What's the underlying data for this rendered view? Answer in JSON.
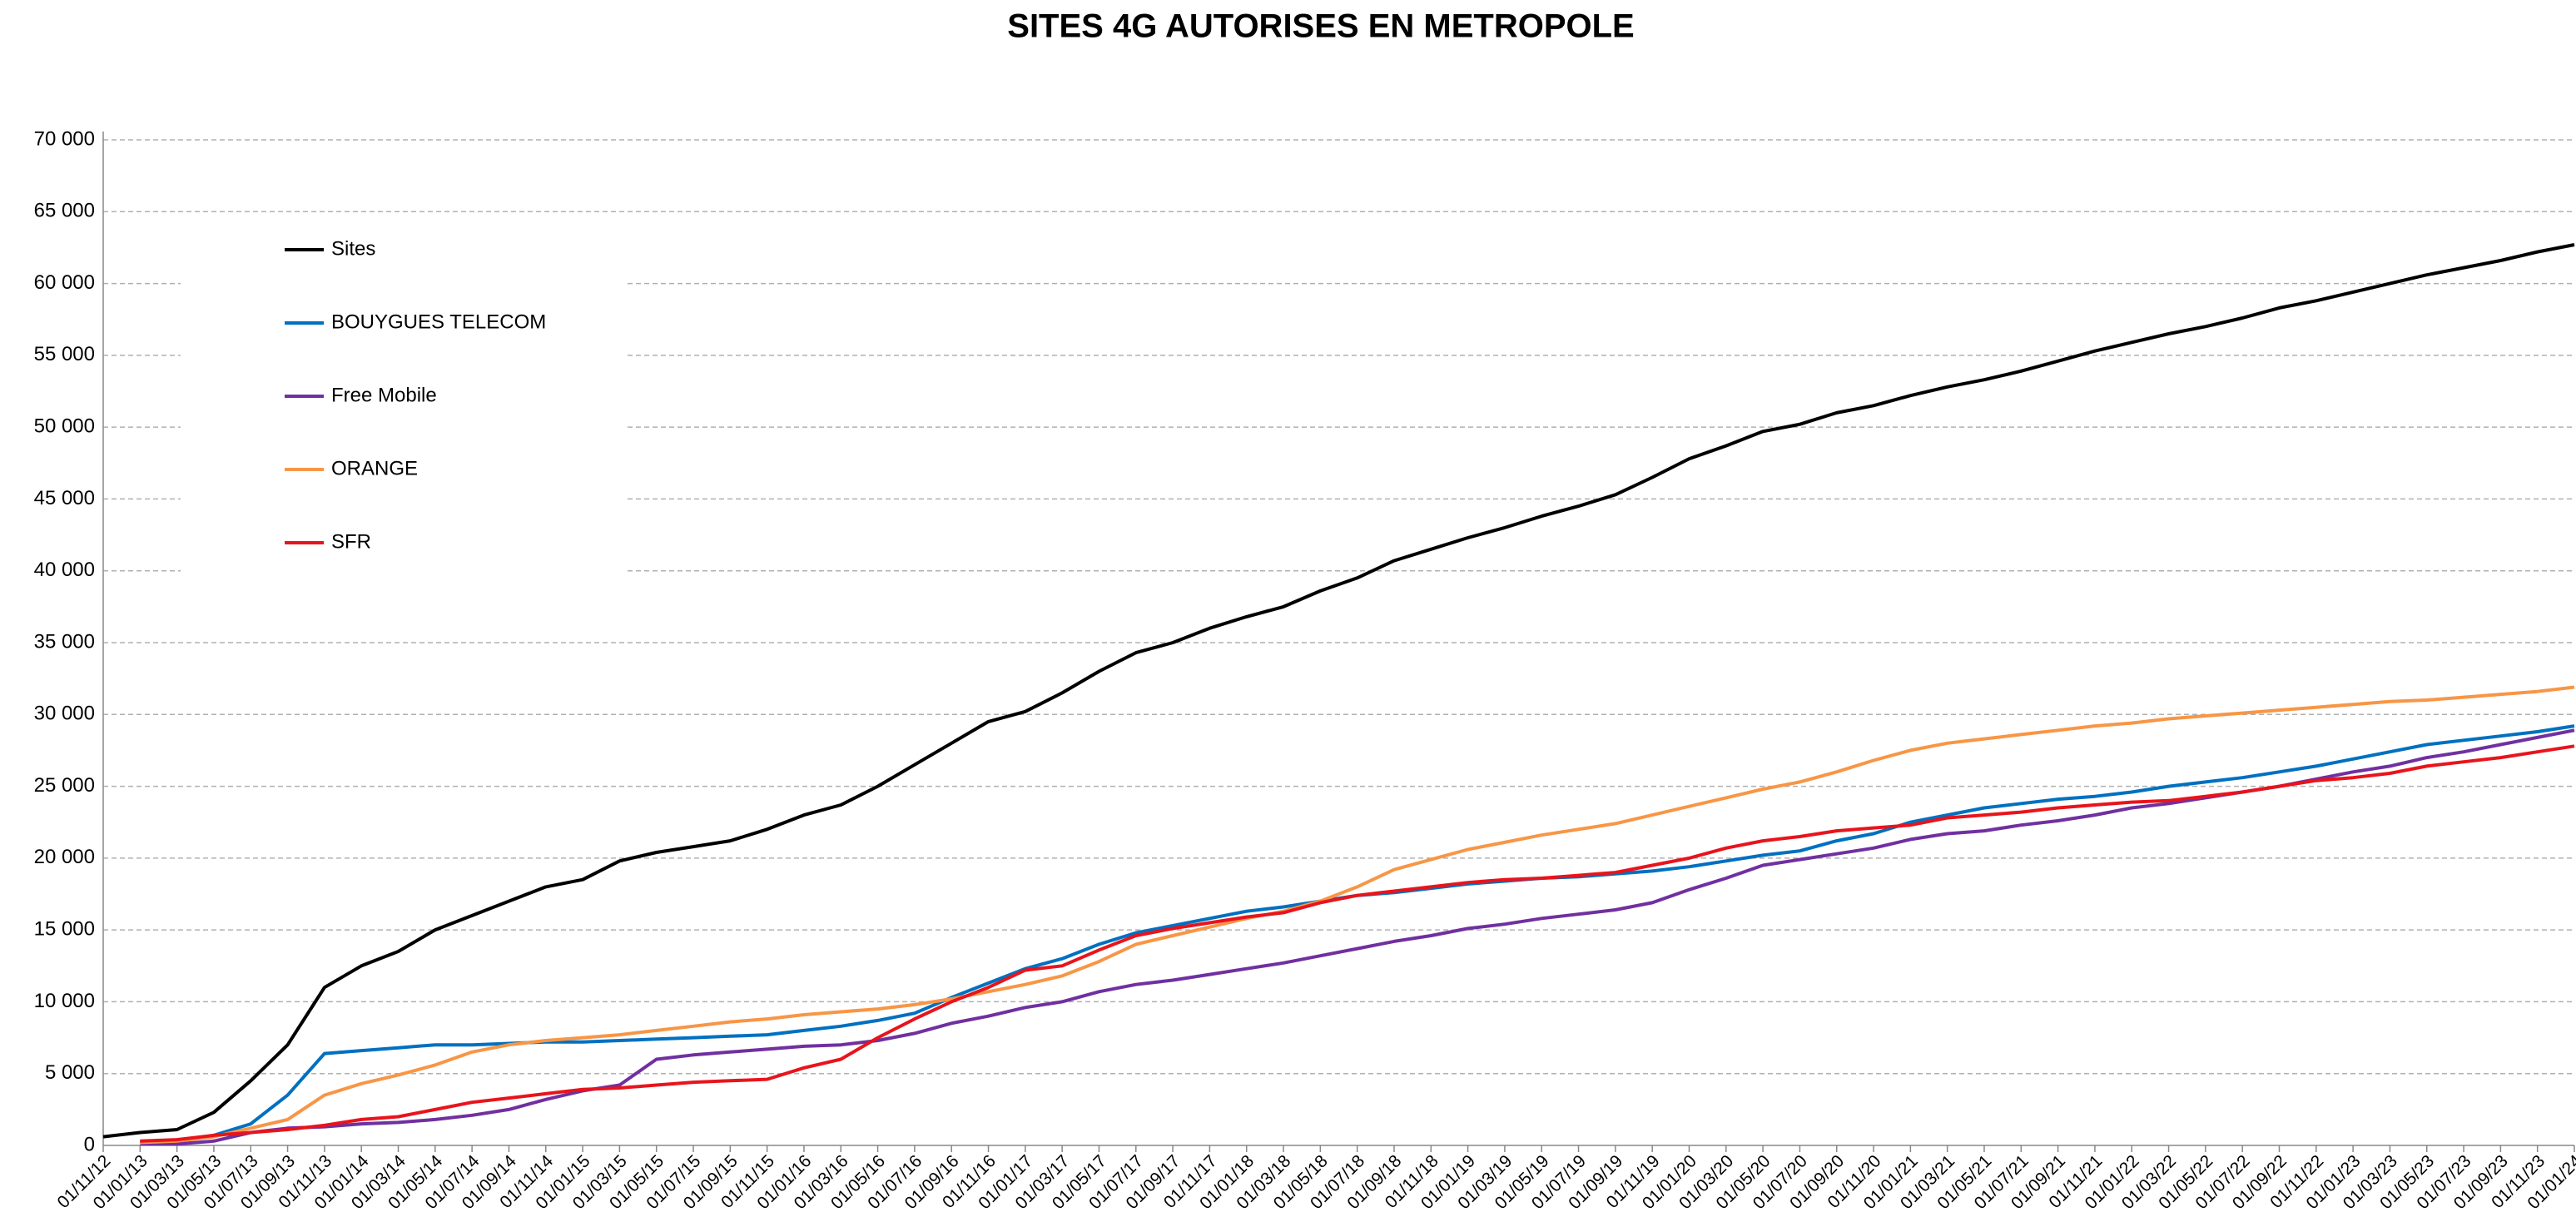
{
  "chart_data": {
    "type": "line",
    "title": "SITES 4G AUTORISES EN METROPOLE",
    "categories": [
      "01/11/12",
      "01/01/13",
      "01/03/13",
      "01/05/13",
      "01/07/13",
      "01/09/13",
      "01/11/13",
      "01/01/14",
      "01/03/14",
      "01/05/14",
      "01/07/14",
      "01/09/14",
      "01/11/14",
      "01/01/15",
      "01/03/15",
      "01/05/15",
      "01/07/15",
      "01/09/15",
      "01/11/15",
      "01/01/16",
      "01/03/16",
      "01/05/16",
      "01/07/16",
      "01/09/16",
      "01/11/16",
      "01/01/17",
      "01/03/17",
      "01/05/17",
      "01/07/17",
      "01/09/17",
      "01/11/17",
      "01/01/18",
      "01/03/18",
      "01/05/18",
      "01/07/18",
      "01/09/18",
      "01/11/18",
      "01/01/19",
      "01/03/19",
      "01/05/19",
      "01/07/19",
      "01/09/19",
      "01/11/19",
      "01/01/20",
      "01/03/20",
      "01/05/20",
      "01/07/20",
      "01/09/20",
      "01/11/20",
      "01/01/21",
      "01/03/21",
      "01/05/21",
      "01/07/21",
      "01/09/21",
      "01/11/21",
      "01/01/22",
      "01/03/22",
      "01/05/22",
      "01/07/22",
      "01/09/22",
      "01/11/22",
      "01/01/23",
      "01/03/23",
      "01/05/23",
      "01/07/23",
      "01/09/23",
      "01/11/23",
      "01/01/24"
    ],
    "series": [
      {
        "name": "Sites",
        "color": "#000000",
        "values": [
          600,
          900,
          1100,
          2300,
          4500,
          7000,
          11000,
          12500,
          13500,
          15000,
          16000,
          17000,
          18000,
          18500,
          19800,
          20400,
          20800,
          21200,
          22000,
          23000,
          23700,
          25000,
          26500,
          28000,
          29500,
          30200,
          31500,
          33000,
          34300,
          35000,
          36000,
          36800,
          37500,
          38600,
          39500,
          40700,
          41500,
          42300,
          43000,
          43800,
          44500,
          45300,
          46500,
          47800,
          48700,
          49700,
          50200,
          51000,
          51500,
          52200,
          52800,
          53300,
          53900,
          54600,
          55300,
          55900,
          56500,
          57000,
          57600,
          58300,
          58800,
          59400,
          60000,
          60600,
          61100,
          61600,
          62200,
          62700
        ]
      },
      {
        "name": "BOUYGUES TELECOM",
        "color": "#0070c0",
        "values": [
          null,
          200,
          300,
          700,
          1500,
          3500,
          6400,
          6600,
          6800,
          7000,
          7000,
          7100,
          7200,
          7200,
          7300,
          7400,
          7500,
          7600,
          7700,
          8000,
          8300,
          8700,
          9200,
          10300,
          11300,
          12300,
          13000,
          14000,
          14800,
          15300,
          15800,
          16300,
          16600,
          17000,
          17400,
          17600,
          17900,
          18200,
          18400,
          18600,
          18700,
          18900,
          19100,
          19400,
          19800,
          20200,
          20500,
          21200,
          21700,
          22500,
          23000,
          23500,
          23800,
          24100,
          24300,
          24600,
          25000,
          25300,
          25600,
          26000,
          26400,
          26900,
          27400,
          27900,
          28200,
          28500,
          28800,
          29200
        ]
      },
      {
        "name": "Free Mobile",
        "color": "#7030a0",
        "values": [
          null,
          100,
          100,
          300,
          900,
          1200,
          1300,
          1500,
          1600,
          1800,
          2100,
          2500,
          3200,
          3800,
          4200,
          6000,
          6300,
          6500,
          6700,
          6900,
          7000,
          7300,
          7800,
          8500,
          9000,
          9600,
          10000,
          10700,
          11200,
          11500,
          11900,
          12300,
          12700,
          13200,
          13700,
          14200,
          14600,
          15100,
          15400,
          15800,
          16100,
          16400,
          16900,
          17800,
          18600,
          19500,
          19900,
          20300,
          20700,
          21300,
          21700,
          21900,
          22300,
          22600,
          23000,
          23500,
          23800,
          24200,
          24600,
          25000,
          25500,
          26000,
          26400,
          27000,
          27400,
          27900,
          28400,
          28900
        ]
      },
      {
        "name": "ORANGE",
        "color": "#f79646",
        "values": [
          null,
          200,
          300,
          600,
          1200,
          1800,
          3500,
          4300,
          4900,
          5600,
          6500,
          7000,
          7300,
          7500,
          7700,
          8000,
          8300,
          8600,
          8800,
          9100,
          9300,
          9500,
          9800,
          10200,
          10700,
          11200,
          11800,
          12800,
          14000,
          14600,
          15200,
          15800,
          16300,
          17000,
          18000,
          19200,
          19900,
          20600,
          21100,
          21600,
          22000,
          22400,
          23000,
          23600,
          24200,
          24800,
          25300,
          26000,
          26800,
          27500,
          28000,
          28300,
          28600,
          28900,
          29200,
          29400,
          29700,
          29900,
          30100,
          30300,
          30500,
          30700,
          30900,
          31000,
          31200,
          31400,
          31600,
          31900
        ]
      },
      {
        "name": "SFR",
        "color": "#e8141c",
        "values": [
          null,
          300,
          400,
          700,
          900,
          1100,
          1400,
          1800,
          2000,
          2500,
          3000,
          3300,
          3600,
          3900,
          4000,
          4200,
          4400,
          4500,
          4600,
          5400,
          6000,
          7500,
          8800,
          10000,
          11000,
          12200,
          12500,
          13600,
          14600,
          15100,
          15500,
          15900,
          16200,
          16900,
          17400,
          17700,
          18000,
          18300,
          18500,
          18600,
          18800,
          19000,
          19500,
          20000,
          20700,
          21200,
          21500,
          21900,
          22100,
          22300,
          22800,
          23000,
          23200,
          23500,
          23700,
          23900,
          24000,
          24300,
          24600,
          25000,
          25400,
          25600,
          25900,
          26400,
          26700,
          27000,
          27400,
          27800
        ]
      }
    ],
    "ylim": [
      0,
      70000
    ],
    "yticks": [
      0,
      {
        "value": 5000,
        "label": "5 000"
      },
      {
        "value": 10000,
        "label": "10 000"
      },
      {
        "value": 15000,
        "label": "15 000"
      },
      {
        "value": 20000,
        "label": "20 000"
      },
      {
        "value": 25000,
        "label": "25 000"
      },
      {
        "value": 30000,
        "label": "30 000"
      },
      {
        "value": 35000,
        "label": "35 000"
      },
      {
        "value": 40000,
        "label": "40 000"
      },
      {
        "value": 45000,
        "label": "45 000"
      },
      {
        "value": 50000,
        "label": "50 000"
      },
      {
        "value": 55000,
        "label": "55 000"
      },
      {
        "value": 60000,
        "label": "60 000"
      },
      {
        "value": 65000,
        "label": "65 000"
      },
      {
        "value": 70000,
        "label": "70 000"
      }
    ],
    "grid": true,
    "legend": "top-left"
  }
}
